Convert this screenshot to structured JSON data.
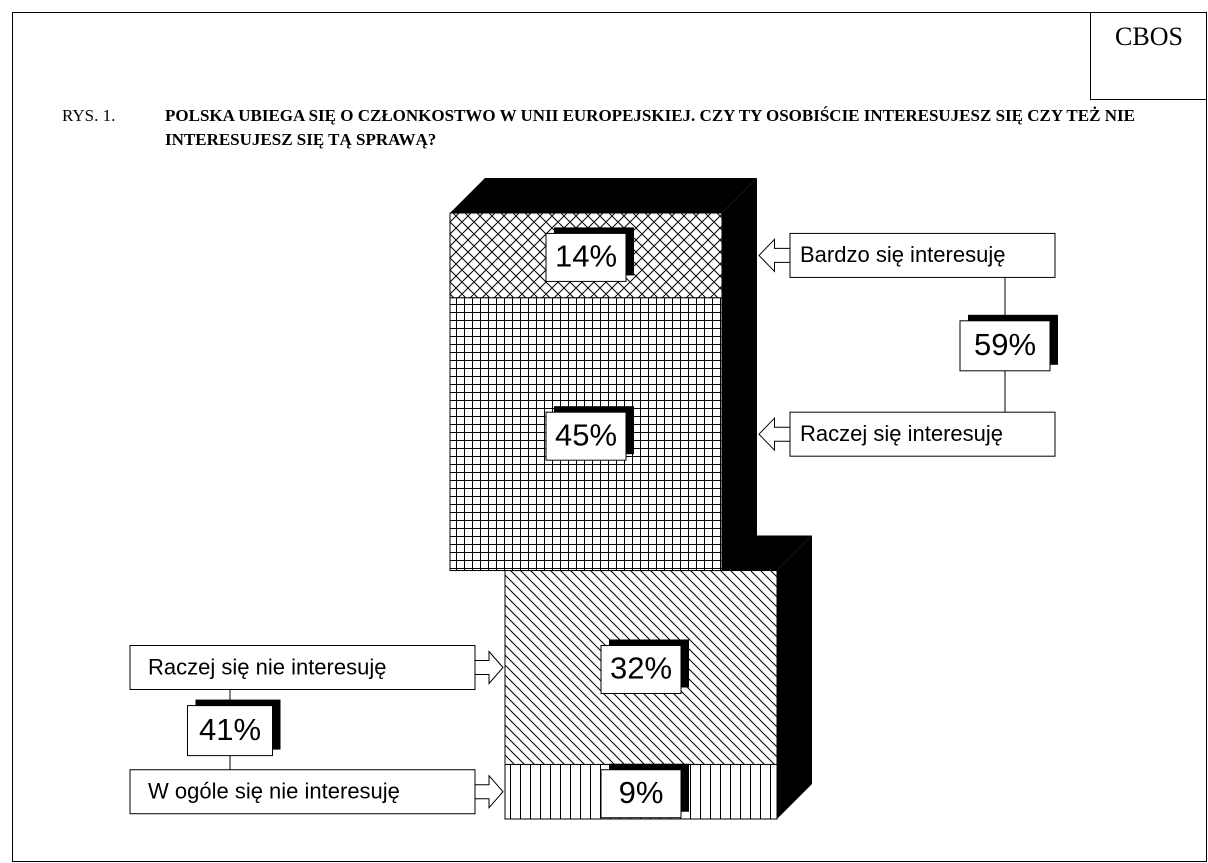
{
  "chart_data": {
    "type": "stacked-bar",
    "source": "CBOS",
    "figure_label": "RYS. 1.",
    "title": "POLSKA UBIEGA SIĘ O CZŁONKOSTWO W UNII EUROPEJSKIEJ. CZY TY OSOBIŚCIE INTERESUJESZ SIĘ CZY TEŻ NIE INTERESUJESZ SIĘ TĄ SPRAWĄ?",
    "stacks": [
      {
        "categories": [
          "Bardzo się interesuję",
          "Raczej się interesuję"
        ],
        "values": [
          14,
          45
        ],
        "value_labels": [
          "14%",
          "45%"
        ],
        "total": 59,
        "total_label": "59%"
      },
      {
        "categories": [
          "Raczej się nie interesuję",
          "W ogóle się nie interesuję"
        ],
        "values": [
          32,
          9
        ],
        "value_labels": [
          "32%",
          "9%"
        ],
        "total": 41,
        "total_label": "41%"
      }
    ]
  }
}
